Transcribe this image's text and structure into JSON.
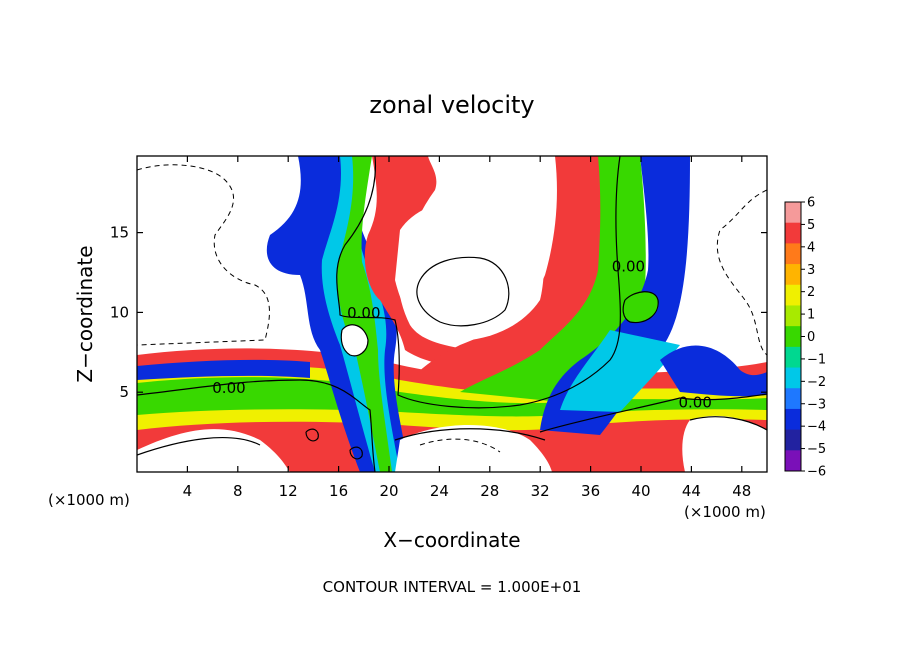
{
  "chart_data": {
    "type": "heatmap",
    "title": "zonal velocity",
    "xlabel": "X−coordinate",
    "ylabel": "Z−coordinate",
    "x_unit_left": "(×1000 m)",
    "x_unit_right": "(×1000 m)",
    "footer": "CONTOUR INTERVAL = 1.000E+01",
    "xlim": [
      0,
      50
    ],
    "ylim": [
      0,
      19.8
    ],
    "x_ticks": [
      4,
      8,
      12,
      16,
      20,
      24,
      28,
      32,
      36,
      40,
      44,
      48
    ],
    "y_ticks": [
      5,
      10,
      15
    ],
    "colorbar": {
      "levels": [
        6,
        5,
        4,
        3,
        2,
        1,
        0,
        -1,
        -2,
        -3,
        -4,
        -5,
        -6
      ],
      "labels": [
        "6",
        "5",
        "4",
        "3",
        "2",
        "1",
        "0",
        "−1",
        "−2",
        "−3",
        "−4",
        "−5",
        "−6"
      ],
      "colors": [
        "#f59a9a",
        "#f23a3a",
        "#ff7a1a",
        "#ffb400",
        "#f0f000",
        "#a8ea00",
        "#38d800",
        "#00d890",
        "#00c8e8",
        "#1e78ff",
        "#0a2cdc",
        "#2222a0",
        "#7a10b8"
      ]
    },
    "contour_labels": [
      {
        "text": "0.00",
        "x": 18.0,
        "z": 9.9
      },
      {
        "text": "0.00",
        "x": 7.3,
        "z": 5.2
      },
      {
        "text": "0.00",
        "x": 39.0,
        "z": 12.8
      },
      {
        "text": "0.00",
        "x": 44.3,
        "z": 4.3
      }
    ],
    "grid": false
  }
}
